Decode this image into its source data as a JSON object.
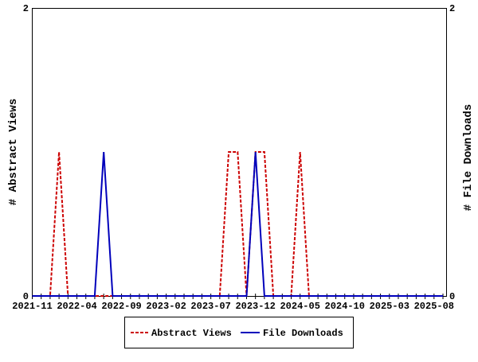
{
  "chart_data": {
    "type": "line",
    "xlabel": "",
    "ylabel_left": "# Abstract Views",
    "ylabel_right": "# File Downloads",
    "ylim": [
      0,
      2
    ],
    "y_ticks_left": [
      "0",
      "2"
    ],
    "y_ticks_right": [
      "0",
      "2"
    ],
    "x_start": "2021-11",
    "x_range_months": [
      0,
      46.4
    ],
    "x_tick_labels": [
      "2021-11",
      "2022-04",
      "2022-09",
      "2023-02",
      "2023-07",
      "2023-12",
      "2024-05",
      "2024-10",
      "2025-03",
      "2025-08"
    ],
    "x_tick_label_step_months": 5,
    "series": [
      {
        "name": "Abstract Views",
        "color": "#cc0000",
        "style": "dashed",
        "values": [
          0,
          0,
          0,
          1,
          0,
          0,
          0,
          0,
          0,
          0,
          0,
          0,
          0,
          0,
          0,
          0,
          0,
          0,
          0,
          0,
          0,
          0,
          1,
          1,
          0,
          1,
          1,
          0,
          0,
          0,
          1,
          0,
          0,
          0,
          0,
          0,
          0,
          0,
          0,
          0,
          0,
          0,
          0,
          0,
          0,
          0,
          0
        ]
      },
      {
        "name": "File Downloads",
        "color": "#0000bb",
        "style": "solid",
        "values": [
          0,
          0,
          0,
          0,
          0,
          0,
          0,
          0,
          1,
          0,
          0,
          0,
          0,
          0,
          0,
          0,
          0,
          0,
          0,
          0,
          0,
          0,
          0,
          0,
          0,
          1,
          0,
          0,
          0,
          0,
          0,
          0,
          0,
          0,
          0,
          0,
          0,
          0,
          0,
          0,
          0,
          0,
          0,
          0,
          0,
          0,
          0
        ]
      }
    ],
    "legend": {
      "placement": "bottom-center",
      "entries": [
        "Abstract Views",
        "File Downloads"
      ]
    },
    "grid": false
  }
}
